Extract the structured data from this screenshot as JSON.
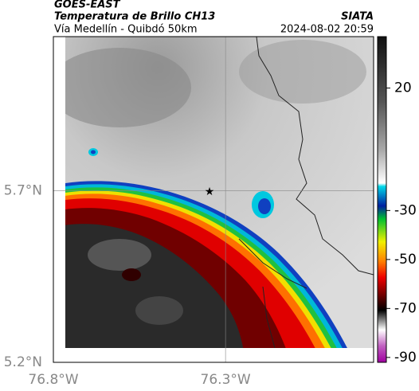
{
  "header": {
    "product": "GOES-EAST",
    "title": "Temperatura de Brillo CH13",
    "subtitle": "Vía Medellín - Quibdó 50km",
    "source": "SIATA",
    "datetime": "2024-08-02 20:59"
  },
  "map": {
    "xlim": [
      -76.8,
      -75.87
    ],
    "ylim": [
      5.2,
      6.15
    ],
    "xticks": [
      {
        "value": -76.8,
        "label": "76.8°W"
      },
      {
        "value": -76.3,
        "label": "76.3°W"
      }
    ],
    "yticks": [
      {
        "value": 5.2,
        "label": "5.2°N"
      },
      {
        "value": 5.7,
        "label": "5.7°N"
      }
    ]
  },
  "colorbar": {
    "lim": [
      -92,
      41
    ],
    "ticks": [
      20,
      -30,
      -50,
      -70,
      -90
    ]
  }
}
